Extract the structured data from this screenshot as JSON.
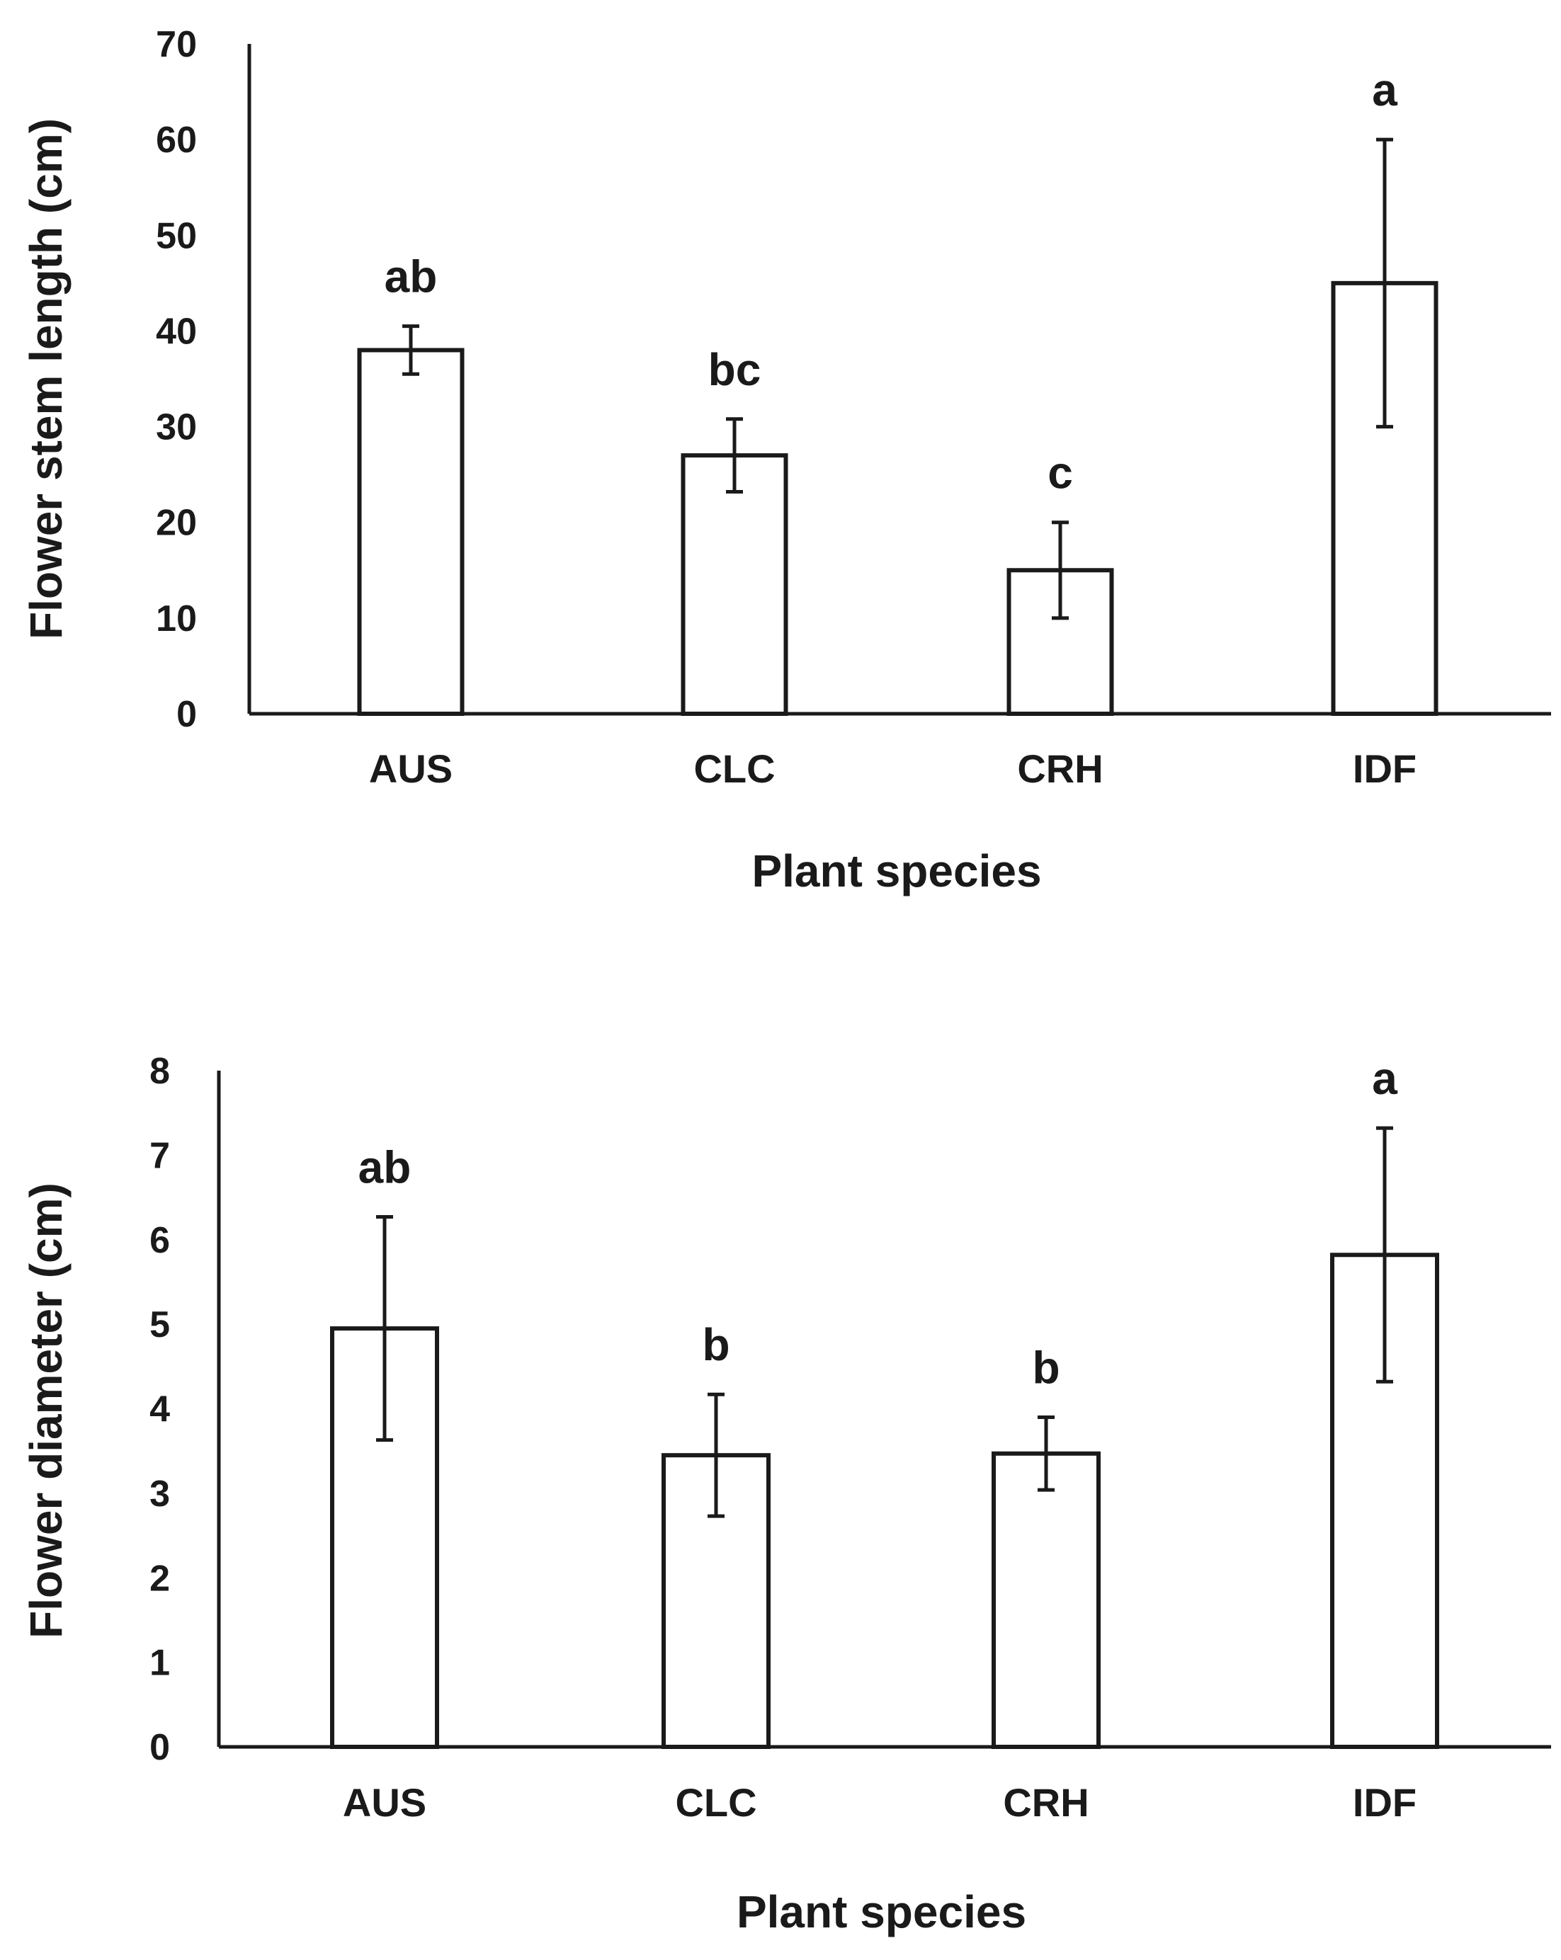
{
  "chart_data": [
    {
      "type": "bar",
      "title": "",
      "categories": [
        "AUS",
        "CLC",
        "CRH",
        "IDF"
      ],
      "values": [
        38,
        27,
        15,
        45
      ],
      "error": [
        2.5,
        3.8,
        5,
        15
      ],
      "significance": [
        "ab",
        "bc",
        "c",
        "a"
      ],
      "xlabel": "Plant species",
      "ylabel": "Flower stem length (cm)",
      "ylim": [
        0,
        70
      ],
      "yticks": [
        0,
        10,
        20,
        30,
        40,
        50,
        60,
        70
      ],
      "grid": false
    },
    {
      "type": "bar",
      "title": "",
      "categories": [
        "AUS",
        "CLC",
        "CRH",
        "IDF"
      ],
      "values": [
        4.95,
        3.45,
        3.47,
        5.82
      ],
      "error": [
        1.32,
        0.72,
        0.43,
        1.5
      ],
      "significance": [
        "ab",
        "b",
        "b",
        "a"
      ],
      "xlabel": "Plant species",
      "ylabel": "Flower diameter (cm)",
      "ylim": [
        0,
        8
      ],
      "yticks": [
        0,
        1,
        2,
        3,
        4,
        5,
        6,
        7,
        8
      ],
      "grid": false
    }
  ]
}
